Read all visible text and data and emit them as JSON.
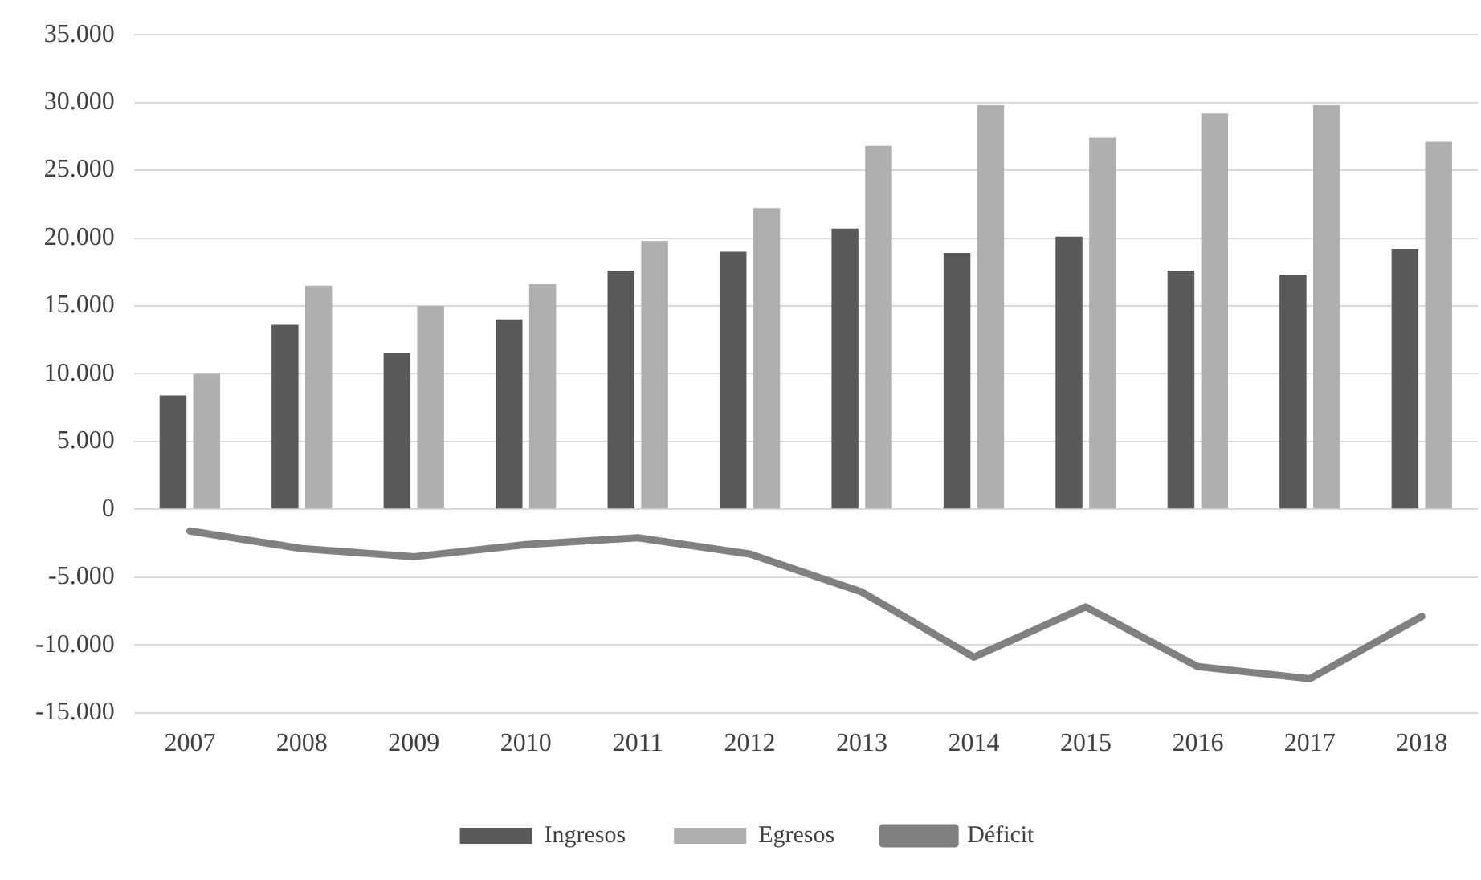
{
  "chart_data": {
    "type": "bar",
    "categories": [
      "2007",
      "2008",
      "2009",
      "2010",
      "2011",
      "2012",
      "2013",
      "2014",
      "2015",
      "2016",
      "2017",
      "2018"
    ],
    "series": [
      {
        "name": "Ingresos",
        "color": "#595959",
        "values": [
          8400,
          13600,
          11500,
          14000,
          17600,
          19000,
          20700,
          18900,
          20100,
          17600,
          17300,
          19200
        ]
      },
      {
        "name": "Egresos",
        "color": "#afafaf",
        "values": [
          10000,
          16500,
          15000,
          16600,
          19800,
          22200,
          26800,
          29800,
          27400,
          29200,
          29800,
          27100
        ]
      },
      {
        "name": "Déficit",
        "type": "line",
        "color": "#808080",
        "marker": "none",
        "values": [
          -1600,
          -2900,
          -3500,
          -2600,
          -2100,
          -3300,
          -6100,
          -10900,
          -7200,
          -11600,
          -12500,
          -7900
        ]
      }
    ],
    "ylim": [
      -15000,
      35000
    ],
    "yticks": [
      {
        "value": -15000,
        "label": "-15.000"
      },
      {
        "value": -10000,
        "label": "-10.000"
      },
      {
        "value": -5000,
        "label": "-5.000"
      },
      {
        "value": 0,
        "label": "0"
      },
      {
        "value": 5000,
        "label": "5.000"
      },
      {
        "value": 10000,
        "label": "10.000"
      },
      {
        "value": 15000,
        "label": "15.000"
      },
      {
        "value": 20000,
        "label": "20.000"
      },
      {
        "value": 25000,
        "label": "25.000"
      },
      {
        "value": 30000,
        "label": "30.000"
      },
      {
        "value": 35000,
        "label": "35.000"
      }
    ],
    "grid": "y",
    "legend": "bottom"
  }
}
